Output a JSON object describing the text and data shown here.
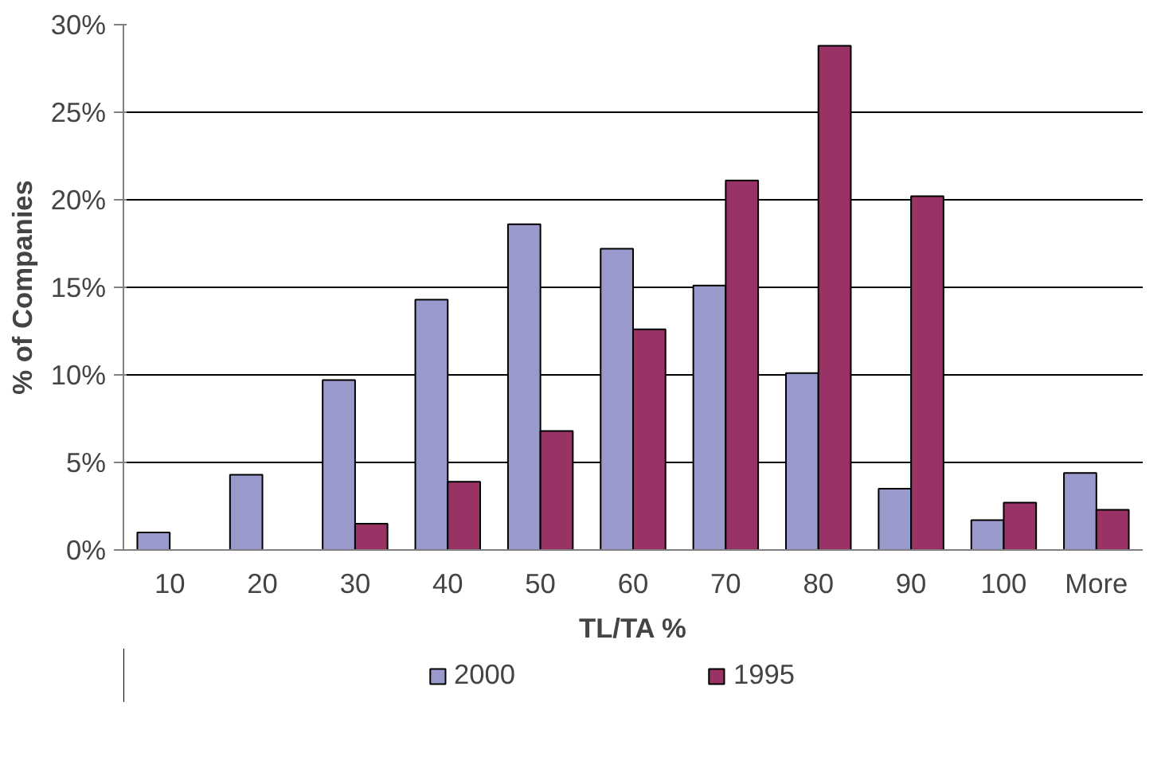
{
  "chart_data": {
    "type": "bar",
    "xlabel": "TL/TA %",
    "ylabel": "% of Companies",
    "categories": [
      "10",
      "20",
      "30",
      "40",
      "50",
      "60",
      "70",
      "80",
      "90",
      "100",
      "More"
    ],
    "series": [
      {
        "name": "2000",
        "color": "#9999cc",
        "values": [
          1.0,
          4.3,
          9.7,
          14.3,
          18.6,
          17.2,
          15.1,
          10.1,
          3.5,
          1.7,
          4.4
        ]
      },
      {
        "name": "1995",
        "color": "#993366",
        "values": [
          null,
          null,
          1.5,
          3.9,
          6.8,
          12.6,
          21.1,
          28.8,
          20.2,
          2.7,
          2.3
        ]
      }
    ],
    "ylim": [
      0,
      30
    ],
    "yticks": [
      {
        "value": 0,
        "label": "0%"
      },
      {
        "value": 5,
        "label": "5%"
      },
      {
        "value": 10,
        "label": "10%"
      },
      {
        "value": 15,
        "label": "15%"
      },
      {
        "value": 20,
        "label": "20%"
      },
      {
        "value": 25,
        "label": "25%"
      },
      {
        "value": 30,
        "label": "30%"
      }
    ],
    "grid": "y",
    "legend": "bottom"
  }
}
